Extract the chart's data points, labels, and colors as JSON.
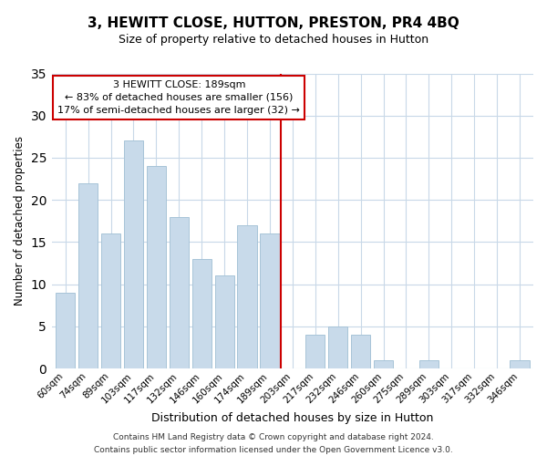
{
  "title": "3, HEWITT CLOSE, HUTTON, PRESTON, PR4 4BQ",
  "subtitle": "Size of property relative to detached houses in Hutton",
  "xlabel": "Distribution of detached houses by size in Hutton",
  "ylabel": "Number of detached properties",
  "footer_line1": "Contains HM Land Registry data © Crown copyright and database right 2024.",
  "footer_line2": "Contains public sector information licensed under the Open Government Licence v3.0.",
  "bar_labels": [
    "60sqm",
    "74sqm",
    "89sqm",
    "103sqm",
    "117sqm",
    "132sqm",
    "146sqm",
    "160sqm",
    "174sqm",
    "189sqm",
    "203sqm",
    "217sqm",
    "232sqm",
    "246sqm",
    "260sqm",
    "275sqm",
    "289sqm",
    "303sqm",
    "317sqm",
    "332sqm",
    "346sqm"
  ],
  "bar_values": [
    9,
    22,
    16,
    27,
    24,
    18,
    13,
    11,
    17,
    16,
    0,
    4,
    5,
    4,
    1,
    0,
    1,
    0,
    0,
    0,
    1
  ],
  "bar_color": "#c8daea",
  "bar_edge_color": "#a8c4d8",
  "reference_line_color": "#cc0000",
  "annotation_title": "3 HEWITT CLOSE: 189sqm",
  "annotation_line1": "← 83% of detached houses are smaller (156)",
  "annotation_line2": "17% of semi-detached houses are larger (32) →",
  "annotation_box_color": "white",
  "annotation_box_edge_color": "#cc0000",
  "ylim": [
    0,
    35
  ],
  "yticks": [
    0,
    5,
    10,
    15,
    20,
    25,
    30,
    35
  ],
  "bg_color": "white",
  "grid_color": "#c8d8e8",
  "title_fontsize": 11,
  "subtitle_fontsize": 9
}
